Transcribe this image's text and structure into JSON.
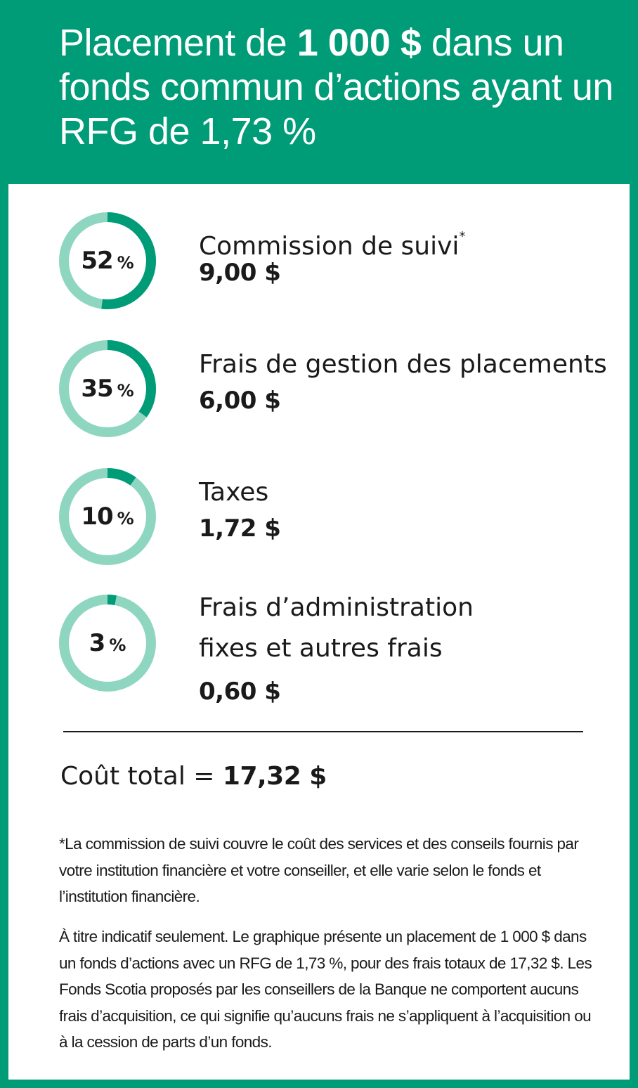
{
  "header": {
    "title_prefix": "Placement de ",
    "title_amount": "1 000 $",
    "title_suffix": " dans un fonds commun d’actions ayant un RFG de 1,73 %"
  },
  "chart_data": {
    "type": "donut",
    "unit": "%",
    "items": [
      {
        "percent": 52,
        "percent_label": "52",
        "label": "Commission de suivi",
        "footnote_mark": "*",
        "amount": "9,00 $"
      },
      {
        "percent": 35,
        "percent_label": "35",
        "label": "Frais de gestion des placements",
        "footnote_mark": "",
        "amount": "6,00 $"
      },
      {
        "percent": 10,
        "percent_label": "10",
        "label": "Taxes",
        "footnote_mark": "",
        "amount": "1,72 $"
      },
      {
        "percent": 3,
        "percent_label": "3",
        "label": "Frais d’administration",
        "label_line2": "fixes et autres frais",
        "footnote_mark": "",
        "amount": "0,60 $"
      }
    ]
  },
  "total": {
    "label": "Coût total = ",
    "value": "17,32 $"
  },
  "notes": {
    "footnote": "*La commission de suivi couvre le coût des services et des conseils fournis par votre institution financière et votre conseiller, et elle varie selon le fonds et l’institution financière.",
    "disclaimer": "À titre indicatif seulement. Le graphique présente un placement de 1 000 $ dans un fonds d’actions avec un RFG de 1,73 %, pour des frais totaux de 17,32 $. Les Fonds Scotia proposés par les conseillers de la Banque ne comportent aucuns frais d’acquisition, ce qui signifie qu’aucuns frais ne s’appliquent à l’acquisition ou à la cession de parts d’un fonds."
  },
  "colors": {
    "brand": "#009b77",
    "ring_track": "#8fd6c0",
    "ring_fill": "#009b77",
    "text": "#1a1a1a"
  }
}
